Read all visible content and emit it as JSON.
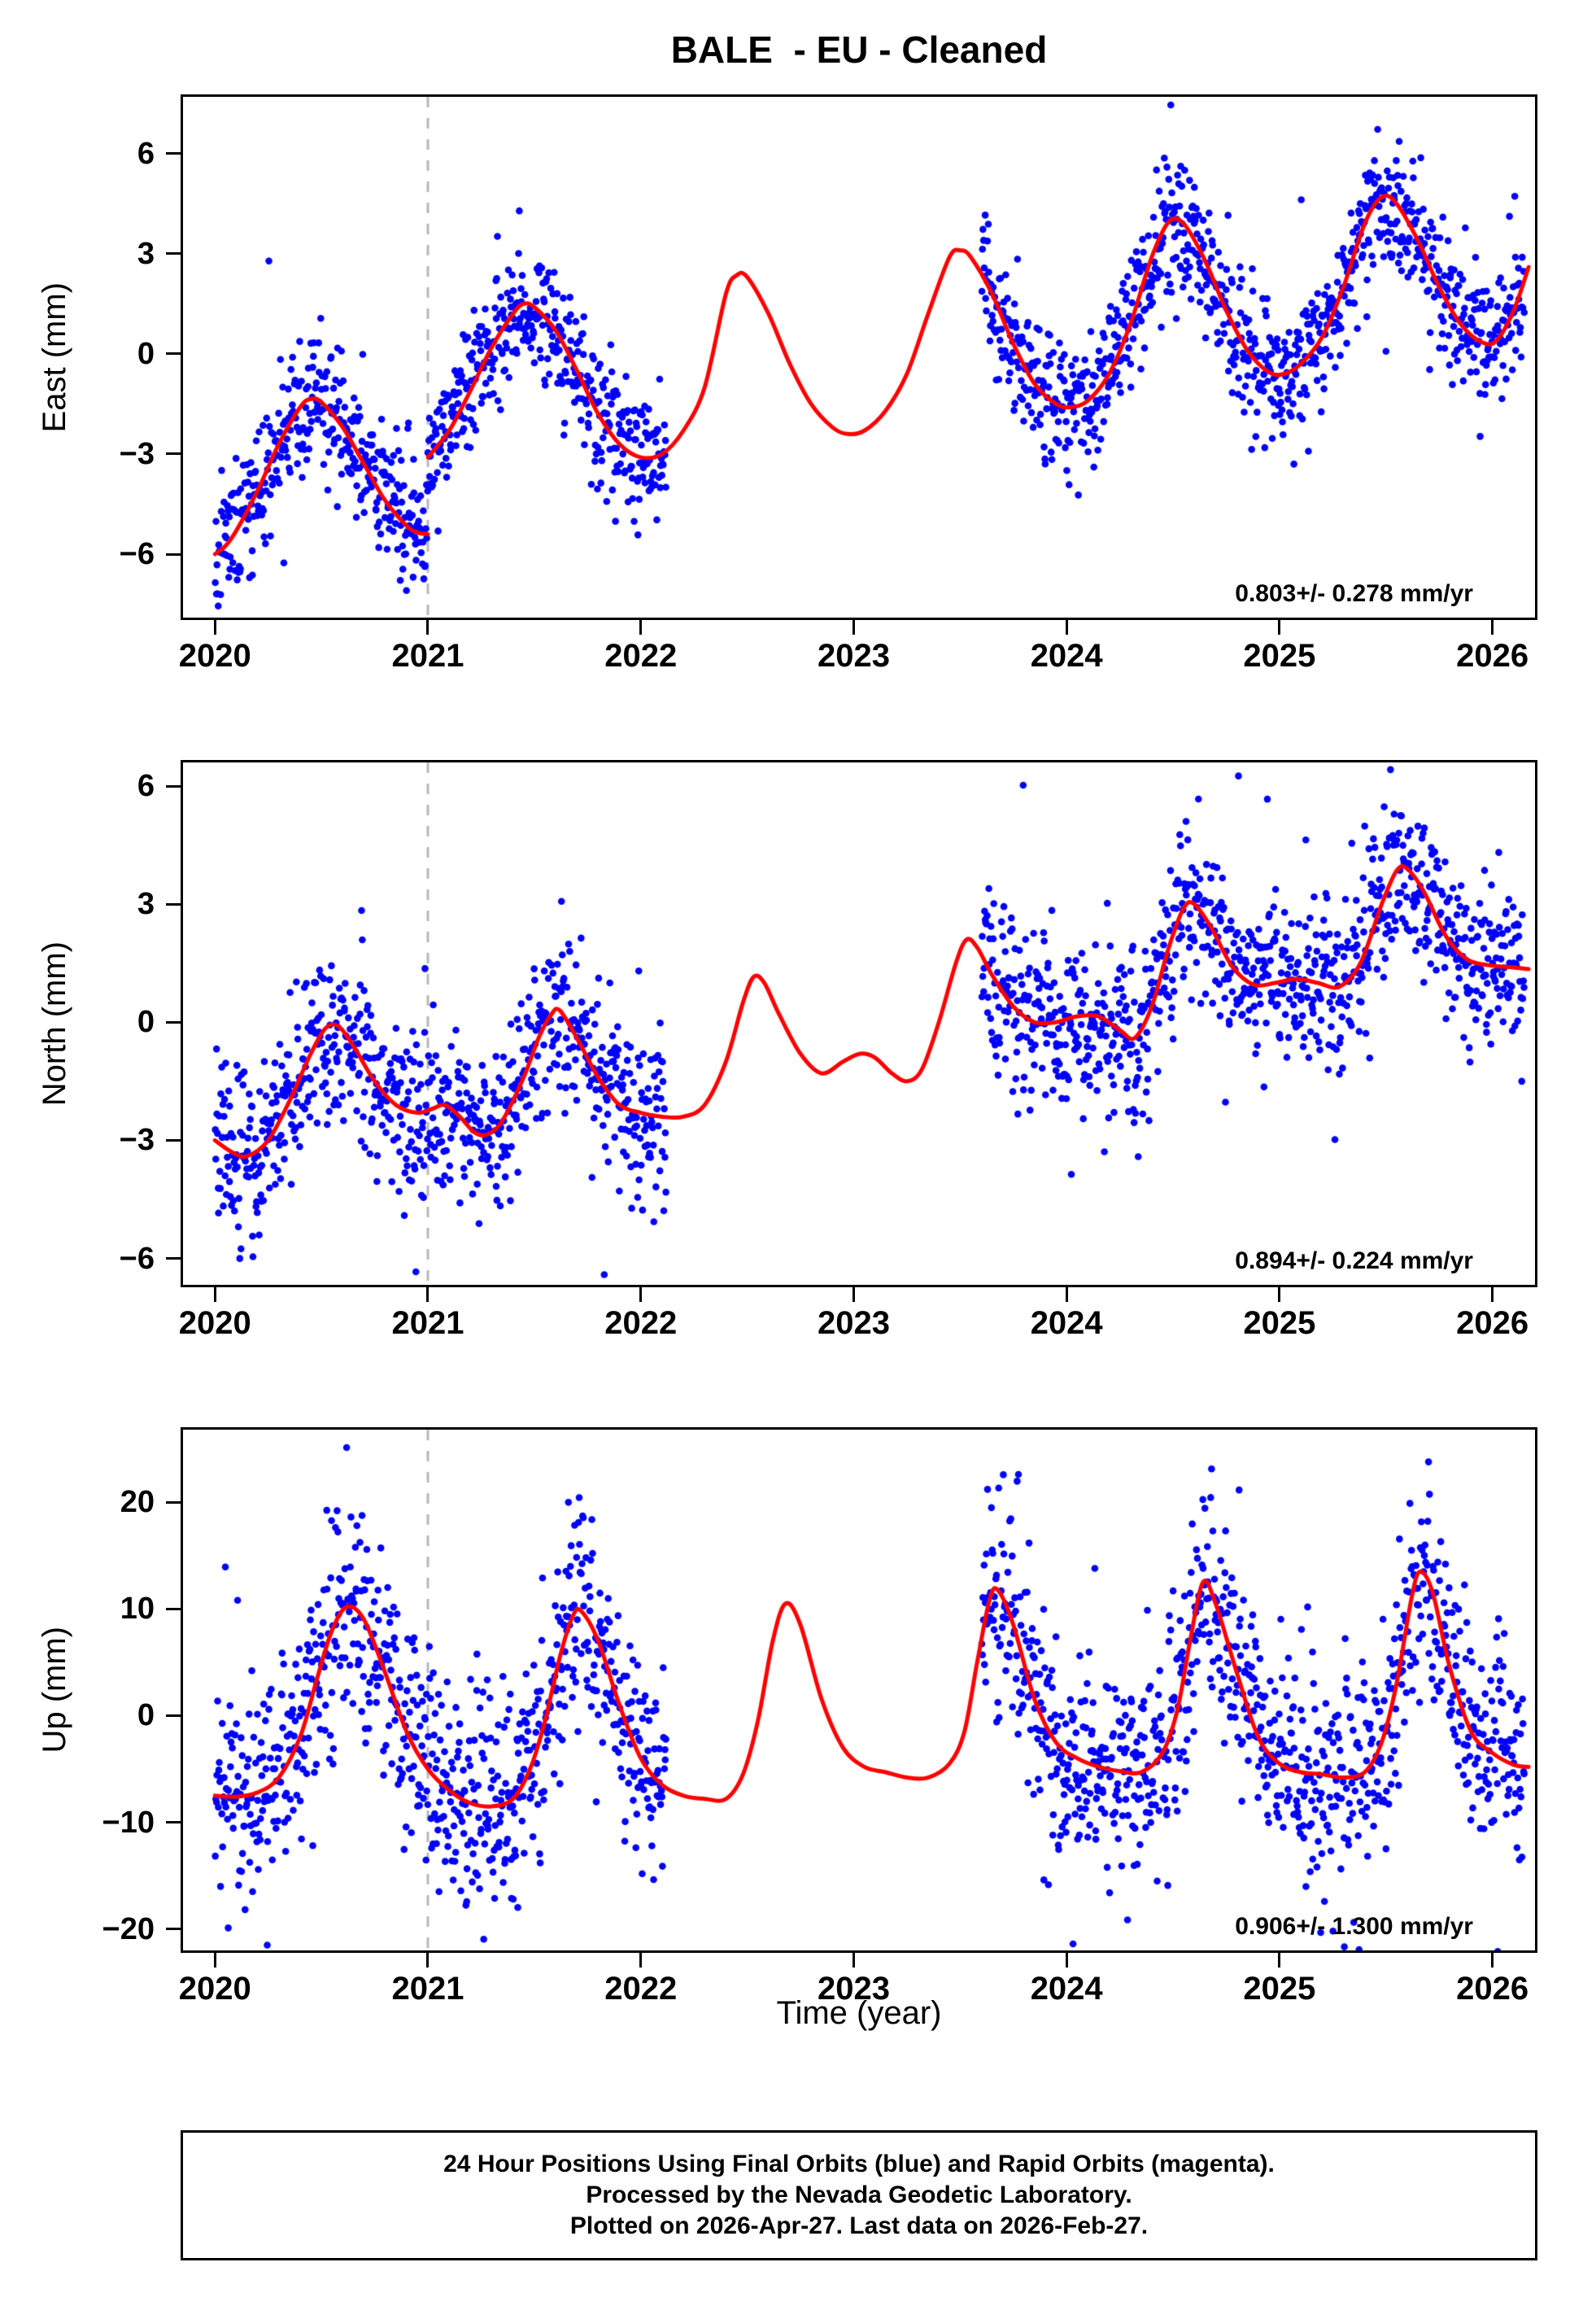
{
  "chart_data": {
    "type": "scatter",
    "title": "BALE  - EU - Cleaned",
    "xlabel": "Time (year)",
    "x": {
      "range": [
        2019.85,
        2026.2
      ],
      "tick_values": [
        2020,
        2021,
        2022,
        2023,
        2024,
        2025,
        2026
      ],
      "tick_labels": [
        "2020",
        "2021",
        "2022",
        "2023",
        "2024",
        "2025",
        "2026"
      ]
    },
    "dashed_line_x": 2021,
    "colors": {
      "dots": "#0000ff",
      "model": "#ff0000",
      "dashed": "#b8b8b8",
      "frame": "#000000"
    },
    "data_spans": [
      [
        2020.0,
        2022.12
      ],
      [
        2023.6,
        2026.15
      ]
    ],
    "legend": {
      "final_orbits": "blue",
      "rapid_orbits": "magenta"
    },
    "panels": [
      {
        "name": "east",
        "ylabel": "East (mm)",
        "ylim": [
          -7.9,
          7.7
        ],
        "ytick_values": [
          6,
          3,
          0,
          -3,
          -6
        ],
        "ytick_labels": [
          "6",
          "3",
          "0",
          "−3",
          "−6"
        ],
        "rate_label": "0.803+/- 0.278 mm/yr",
        "scatter": {
          "seed": 11,
          "sd": 0.98,
          "outlier_prob": 0.05,
          "outlier_scale": 2.0,
          "points_per_year": 365
        },
        "model_segments": [
          [
            [
              2020.0,
              -6.0
            ],
            [
              2020.05,
              -5.75
            ],
            [
              2020.1,
              -5.3
            ],
            [
              2020.2,
              -4.1
            ],
            [
              2020.3,
              -2.7
            ],
            [
              2020.4,
              -1.6
            ],
            [
              2020.45,
              -1.35
            ],
            [
              2020.5,
              -1.45
            ],
            [
              2020.6,
              -2.2
            ],
            [
              2020.7,
              -3.3
            ],
            [
              2020.8,
              -4.4
            ],
            [
              2020.9,
              -5.15
            ],
            [
              2020.95,
              -5.35
            ],
            [
              2021.0,
              -5.4
            ]
          ],
          [
            [
              2021.0,
              -3.1
            ],
            [
              2021.1,
              -2.3
            ],
            [
              2021.2,
              -1.1
            ],
            [
              2021.3,
              0.2
            ],
            [
              2021.4,
              1.2
            ],
            [
              2021.45,
              1.5
            ],
            [
              2021.5,
              1.4
            ],
            [
              2021.6,
              0.7
            ],
            [
              2021.7,
              -0.5
            ],
            [
              2021.8,
              -1.8
            ],
            [
              2021.9,
              -2.7
            ],
            [
              2022.0,
              -3.1
            ],
            [
              2022.1,
              -3.0
            ],
            [
              2022.2,
              -2.3
            ],
            [
              2022.3,
              -1.0
            ],
            [
              2022.4,
              1.8
            ],
            [
              2022.45,
              2.35
            ],
            [
              2022.5,
              2.3
            ],
            [
              2022.6,
              1.2
            ],
            [
              2022.7,
              -0.3
            ],
            [
              2022.8,
              -1.5
            ],
            [
              2022.9,
              -2.2
            ],
            [
              2022.97,
              -2.4
            ],
            [
              2023.05,
              -2.3
            ],
            [
              2023.15,
              -1.7
            ],
            [
              2023.25,
              -0.6
            ],
            [
              2023.35,
              1.2
            ],
            [
              2023.45,
              2.9
            ],
            [
              2023.5,
              3.1
            ],
            [
              2023.55,
              2.9
            ],
            [
              2023.65,
              1.8
            ],
            [
              2023.75,
              0.3
            ],
            [
              2023.85,
              -0.9
            ],
            [
              2023.95,
              -1.5
            ],
            [
              2024.02,
              -1.6
            ],
            [
              2024.1,
              -1.4
            ],
            [
              2024.2,
              -0.6
            ],
            [
              2024.3,
              0.9
            ],
            [
              2024.4,
              2.9
            ],
            [
              2024.48,
              3.95
            ],
            [
              2024.55,
              3.9
            ],
            [
              2024.65,
              2.8
            ],
            [
              2024.75,
              1.3
            ],
            [
              2024.85,
              0.1
            ],
            [
              2024.95,
              -0.55
            ],
            [
              2025.02,
              -0.6
            ],
            [
              2025.1,
              -0.3
            ],
            [
              2025.2,
              0.5
            ],
            [
              2025.3,
              2.0
            ],
            [
              2025.4,
              3.9
            ],
            [
              2025.48,
              4.7
            ],
            [
              2025.55,
              4.5
            ],
            [
              2025.65,
              3.4
            ],
            [
              2025.75,
              2.0
            ],
            [
              2025.85,
              0.9
            ],
            [
              2025.95,
              0.35
            ],
            [
              2026.02,
              0.4
            ],
            [
              2026.1,
              1.3
            ],
            [
              2026.17,
              2.6
            ]
          ]
        ]
      },
      {
        "name": "north",
        "ylabel": "North (mm)",
        "ylim": [
          -6.67,
          6.6
        ],
        "ytick_values": [
          6,
          3,
          0,
          -3,
          -6
        ],
        "ytick_labels": [
          "6",
          "3",
          "0",
          "−3",
          "−6"
        ],
        "rate_label": "0.894+/- 0.224 mm/yr",
        "scatter": {
          "seed": 22,
          "sd": 1.05,
          "outlier_prob": 0.05,
          "outlier_scale": 2.0,
          "points_per_year": 365
        },
        "model_segments": [
          [
            [
              2020.0,
              -3.0
            ],
            [
              2020.08,
              -3.3
            ],
            [
              2020.15,
              -3.4
            ],
            [
              2020.25,
              -3.0
            ],
            [
              2020.35,
              -2.0
            ],
            [
              2020.45,
              -0.8
            ],
            [
              2020.52,
              -0.15
            ],
            [
              2020.58,
              -0.1
            ],
            [
              2020.65,
              -0.6
            ],
            [
              2020.75,
              -1.5
            ],
            [
              2020.85,
              -2.1
            ],
            [
              2020.95,
              -2.3
            ],
            [
              2021.02,
              -2.2
            ],
            [
              2021.08,
              -2.1
            ],
            [
              2021.15,
              -2.4
            ],
            [
              2021.22,
              -2.8
            ],
            [
              2021.28,
              -2.85
            ],
            [
              2021.35,
              -2.5
            ],
            [
              2021.45,
              -1.4
            ],
            [
              2021.52,
              -0.4
            ],
            [
              2021.58,
              0.2
            ],
            [
              2021.62,
              0.3
            ],
            [
              2021.7,
              -0.4
            ],
            [
              2021.8,
              -1.4
            ],
            [
              2021.9,
              -2.1
            ],
            [
              2022.0,
              -2.3
            ],
            [
              2022.1,
              -2.4
            ],
            [
              2022.2,
              -2.4
            ],
            [
              2022.3,
              -2.1
            ],
            [
              2022.4,
              -1.0
            ],
            [
              2022.48,
              0.5
            ],
            [
              2022.53,
              1.15
            ],
            [
              2022.58,
              1.0
            ],
            [
              2022.65,
              0.2
            ],
            [
              2022.75,
              -0.8
            ],
            [
              2022.85,
              -1.3
            ],
            [
              2022.95,
              -1.0
            ],
            [
              2023.03,
              -0.8
            ],
            [
              2023.1,
              -0.9
            ],
            [
              2023.18,
              -1.3
            ],
            [
              2023.25,
              -1.5
            ],
            [
              2023.32,
              -1.2
            ],
            [
              2023.4,
              0.0
            ],
            [
              2023.48,
              1.5
            ],
            [
              2023.53,
              2.1
            ],
            [
              2023.58,
              1.9
            ],
            [
              2023.65,
              1.2
            ],
            [
              2023.75,
              0.4
            ],
            [
              2023.85,
              0.0
            ],
            [
              2023.95,
              0.0
            ],
            [
              2024.05,
              0.15
            ],
            [
              2024.15,
              0.15
            ],
            [
              2024.25,
              -0.2
            ],
            [
              2024.32,
              -0.4
            ],
            [
              2024.4,
              0.4
            ],
            [
              2024.48,
              1.9
            ],
            [
              2024.55,
              2.9
            ],
            [
              2024.6,
              3.0
            ],
            [
              2024.68,
              2.4
            ],
            [
              2024.78,
              1.4
            ],
            [
              2024.88,
              0.95
            ],
            [
              2024.98,
              1.0
            ],
            [
              2025.08,
              1.1
            ],
            [
              2025.18,
              1.0
            ],
            [
              2025.28,
              0.9
            ],
            [
              2025.38,
              1.5
            ],
            [
              2025.48,
              3.0
            ],
            [
              2025.55,
              3.85
            ],
            [
              2025.6,
              3.9
            ],
            [
              2025.68,
              3.3
            ],
            [
              2025.78,
              2.2
            ],
            [
              2025.88,
              1.6
            ],
            [
              2025.98,
              1.45
            ],
            [
              2026.08,
              1.4
            ],
            [
              2026.17,
              1.35
            ]
          ]
        ]
      },
      {
        "name": "up",
        "ylabel": "Up (mm)",
        "ylim": [
          -22,
          26.8
        ],
        "ytick_values": [
          20,
          10,
          0,
          -10,
          -20
        ],
        "ytick_labels": [
          "20",
          "10",
          "0",
          "−10",
          "−20"
        ],
        "rate_label": "0.906+/- 1.300 mm/yr",
        "scatter": {
          "seed": 33,
          "sd": 5.0,
          "outlier_prob": 0.05,
          "outlier_scale": 2.0,
          "points_per_year": 365
        },
        "model_segments": [
          [
            [
              2020.0,
              -7.5
            ],
            [
              2020.1,
              -7.6
            ],
            [
              2020.2,
              -7.2
            ],
            [
              2020.3,
              -5.8
            ],
            [
              2020.4,
              -2.0
            ],
            [
              2020.48,
              3.5
            ],
            [
              2020.55,
              8.0
            ],
            [
              2020.62,
              10.2
            ],
            [
              2020.7,
              9.0
            ],
            [
              2020.8,
              4.0
            ],
            [
              2020.9,
              -1.5
            ],
            [
              2021.0,
              -5.0
            ],
            [
              2021.1,
              -7.0
            ],
            [
              2021.2,
              -8.2
            ],
            [
              2021.3,
              -8.5
            ],
            [
              2021.4,
              -7.8
            ],
            [
              2021.48,
              -5.0
            ],
            [
              2021.55,
              -0.5
            ],
            [
              2021.62,
              5.5
            ],
            [
              2021.68,
              9.3
            ],
            [
              2021.72,
              9.8
            ],
            [
              2021.8,
              7.0
            ],
            [
              2021.9,
              1.0
            ],
            [
              2022.0,
              -4.0
            ],
            [
              2022.1,
              -6.5
            ],
            [
              2022.2,
              -7.5
            ],
            [
              2022.3,
              -7.8
            ],
            [
              2022.4,
              -7.8
            ],
            [
              2022.48,
              -5.5
            ],
            [
              2022.55,
              -0.5
            ],
            [
              2022.62,
              7.0
            ],
            [
              2022.68,
              10.5
            ],
            [
              2022.75,
              8.5
            ],
            [
              2022.85,
              1.5
            ],
            [
              2022.95,
              -3.0
            ],
            [
              2023.05,
              -4.8
            ],
            [
              2023.15,
              -5.3
            ],
            [
              2023.25,
              -5.8
            ],
            [
              2023.35,
              -5.8
            ],
            [
              2023.45,
              -4.5
            ],
            [
              2023.52,
              -1.5
            ],
            [
              2023.58,
              5.0
            ],
            [
              2023.64,
              11.0
            ],
            [
              2023.68,
              11.7
            ],
            [
              2023.75,
              8.5
            ],
            [
              2023.85,
              1.5
            ],
            [
              2023.95,
              -2.5
            ],
            [
              2024.05,
              -4.0
            ],
            [
              2024.15,
              -4.8
            ],
            [
              2024.25,
              -5.2
            ],
            [
              2024.35,
              -5.3
            ],
            [
              2024.45,
              -3.5
            ],
            [
              2024.52,
              0.5
            ],
            [
              2024.58,
              7.0
            ],
            [
              2024.64,
              12.5
            ],
            [
              2024.7,
              10.5
            ],
            [
              2024.8,
              4.0
            ],
            [
              2024.9,
              -2.0
            ],
            [
              2025.0,
              -4.5
            ],
            [
              2025.1,
              -5.3
            ],
            [
              2025.2,
              -5.5
            ],
            [
              2025.3,
              -5.8
            ],
            [
              2025.4,
              -5.3
            ],
            [
              2025.48,
              -2.5
            ],
            [
              2025.55,
              3.0
            ],
            [
              2025.62,
              11.0
            ],
            [
              2025.66,
              13.5
            ],
            [
              2025.72,
              11.5
            ],
            [
              2025.8,
              4.5
            ],
            [
              2025.9,
              -1.5
            ],
            [
              2026.0,
              -3.5
            ],
            [
              2026.1,
              -4.6
            ],
            [
              2026.17,
              -4.8
            ]
          ]
        ]
      }
    ]
  },
  "caption": {
    "line1": "24 Hour Positions Using Final Orbits (blue) and Rapid Orbits (magenta).",
    "line2": "Processed by the Nevada Geodetic Laboratory.",
    "line3": "Plotted on 2026-Apr-27. Last data on 2026-Feb-27."
  }
}
